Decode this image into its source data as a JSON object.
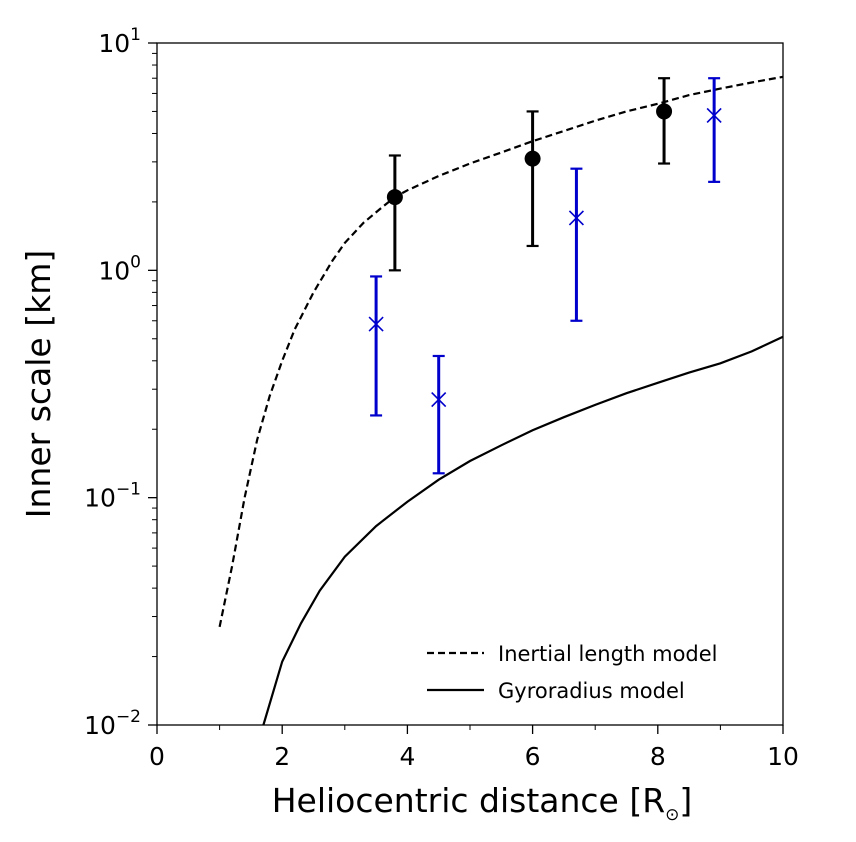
{
  "chart_data": {
    "type": "scatter",
    "title": "",
    "xlabel": "Heliocentric distance [R",
    "xlabel_suffix": "]",
    "ylabel": "Inner scale [km]",
    "xlim": [
      0,
      10
    ],
    "ylim": [
      0.01,
      10
    ],
    "yscale": "log",
    "grid": false,
    "legend_position": "bottom-right",
    "x_ticks": [
      {
        "value": 0,
        "label": "0"
      },
      {
        "value": 2,
        "label": "2"
      },
      {
        "value": 4,
        "label": "4"
      },
      {
        "value": 6,
        "label": "6"
      },
      {
        "value": 8,
        "label": "8"
      },
      {
        "value": 10,
        "label": "10"
      }
    ],
    "y_ticks": [
      {
        "value": 0.01,
        "base": "10",
        "exp": "−2"
      },
      {
        "value": 0.1,
        "base": "10",
        "exp": "−1"
      },
      {
        "value": 1,
        "base": "10",
        "exp": "0"
      },
      {
        "value": 10,
        "base": "10",
        "exp": "1"
      }
    ],
    "lines": [
      {
        "name": "Inertial length model",
        "style": "dashed",
        "color": "#000000",
        "x": [
          1.0,
          1.2,
          1.4,
          1.6,
          1.8,
          2.0,
          2.2,
          2.5,
          2.8,
          3.0,
          3.3,
          3.6,
          3.8,
          4.0,
          4.5,
          5.0,
          5.5,
          6.0,
          6.5,
          7.0,
          7.5,
          8.0,
          8.5,
          9.0,
          9.5,
          10.0
        ],
        "y": [
          0.027,
          0.05,
          0.1,
          0.18,
          0.28,
          0.4,
          0.55,
          0.8,
          1.1,
          1.32,
          1.62,
          1.9,
          2.1,
          2.25,
          2.6,
          2.95,
          3.3,
          3.7,
          4.1,
          4.55,
          5.0,
          5.4,
          5.9,
          6.3,
          6.7,
          7.1
        ]
      },
      {
        "name": "Gyroradius model",
        "style": "solid",
        "color": "#000000",
        "x": [
          1.7,
          2.0,
          2.3,
          2.6,
          3.0,
          3.5,
          4.0,
          4.5,
          5.0,
          5.5,
          6.0,
          6.5,
          7.0,
          7.5,
          8.0,
          8.5,
          9.0,
          9.5,
          10.0
        ],
        "y": [
          0.01,
          0.019,
          0.028,
          0.039,
          0.055,
          0.075,
          0.096,
          0.12,
          0.145,
          0.17,
          0.198,
          0.226,
          0.256,
          0.288,
          0.32,
          0.355,
          0.39,
          0.44,
          0.51
        ]
      }
    ],
    "series": [
      {
        "marker": "circle",
        "color": "#000000",
        "points": [
          {
            "x": 3.8,
            "y": 2.1,
            "ylow": 1.0,
            "yhigh": 3.2
          },
          {
            "x": 6.0,
            "y": 3.1,
            "ylow": 1.28,
            "yhigh": 5.0
          },
          {
            "x": 8.1,
            "y": 5.0,
            "ylow": 2.95,
            "yhigh": 7.0
          }
        ]
      },
      {
        "marker": "x",
        "color": "#0000cc",
        "points": [
          {
            "x": 3.5,
            "y": 0.58,
            "ylow": 0.23,
            "yhigh": 0.94
          },
          {
            "x": 4.5,
            "y": 0.27,
            "ylow": 0.128,
            "yhigh": 0.42
          },
          {
            "x": 6.7,
            "y": 1.7,
            "ylow": 0.6,
            "yhigh": 2.8
          },
          {
            "x": 8.9,
            "y": 4.8,
            "ylow": 2.45,
            "yhigh": 7.0
          }
        ]
      }
    ]
  }
}
